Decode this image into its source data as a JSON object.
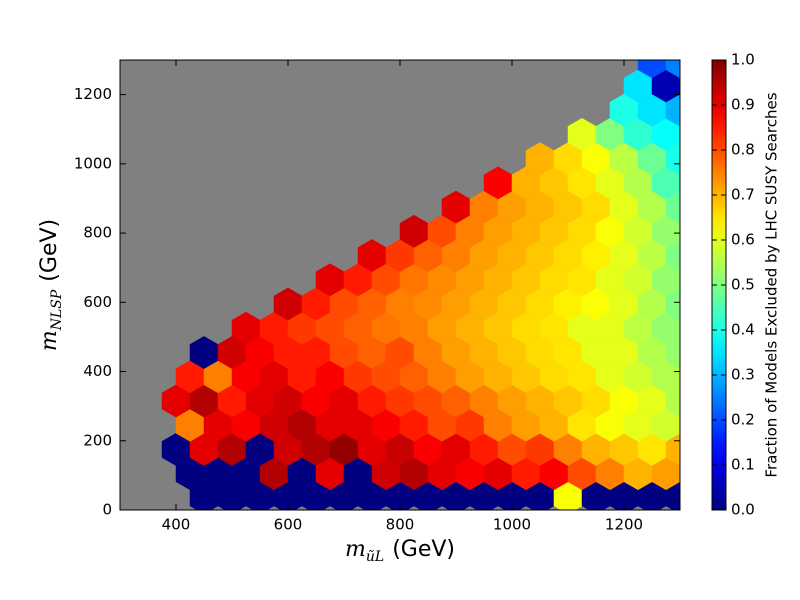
{
  "chart_data": {
    "type": "hexbin",
    "xlabel": {
      "symbol": "m",
      "subscript": "ũL",
      "unit": "(GeV)"
    },
    "ylabel": {
      "symbol": "m",
      "subscript": "NLSP",
      "unit": "(GeV)"
    },
    "colorbar_label": "Fraction of Models Excluded by LHC SUSY Searches",
    "colormap": "jet",
    "background": "#808080",
    "xlim": [
      300,
      1300
    ],
    "ylim": [
      0,
      1300
    ],
    "xticks": [
      400,
      600,
      800,
      1000,
      1200
    ],
    "yticks": [
      0,
      200,
      400,
      600,
      800,
      1000,
      1200
    ],
    "clim": [
      0,
      1
    ],
    "cticks": [
      {
        "value": 0,
        "label": "0.0"
      },
      {
        "value": 0.1,
        "label": "0.1"
      },
      {
        "value": 0.2,
        "label": "0.2"
      },
      {
        "value": 0.3,
        "label": "0.3"
      },
      {
        "value": 0.4,
        "label": "0.4"
      },
      {
        "value": 0.5,
        "label": "0.5"
      },
      {
        "value": 0.6,
        "label": "0.6"
      },
      {
        "value": 0.7,
        "label": "0.7"
      },
      {
        "value": 0.8,
        "label": "0.8"
      },
      {
        "value": 0.9,
        "label": "0.9"
      },
      {
        "value": 1,
        "label": "1.0"
      }
    ],
    "rows": [
      {
        "y": 35,
        "x": [
          450,
          500,
          550,
          600,
          650,
          700,
          750,
          800,
          850,
          900,
          950,
          1000,
          1050,
          1100,
          1150,
          1200,
          1250,
          1300
        ],
        "values": [
          0,
          0,
          0,
          0,
          0,
          0,
          0,
          0,
          0,
          0,
          0,
          0,
          0,
          0.62,
          0,
          0,
          0,
          0
        ]
      },
      {
        "y": 105,
        "x": [
          425,
          475,
          525,
          575,
          625,
          675,
          725,
          775,
          825,
          875,
          925,
          975,
          1025,
          1075,
          1125,
          1175,
          1225,
          1275
        ],
        "values": [
          0,
          0,
          0,
          0.95,
          0,
          0.9,
          0,
          0.92,
          0.95,
          0.9,
          0.88,
          0.9,
          0.85,
          0.88,
          0.8,
          0.75,
          0.7,
          0.72
        ]
      },
      {
        "y": 175,
        "x": [
          400,
          450,
          500,
          550,
          600,
          650,
          700,
          750,
          800,
          850,
          900,
          950,
          1000,
          1050,
          1100,
          1150,
          1200,
          1250,
          1300
        ],
        "values": [
          0,
          0.9,
          0.95,
          0,
          0.92,
          0.95,
          0.98,
          0.9,
          0.93,
          0.88,
          0.9,
          0.85,
          0.8,
          0.82,
          0.75,
          0.7,
          0.68,
          0.65,
          0.7
        ]
      },
      {
        "y": 245,
        "x": [
          425,
          475,
          525,
          575,
          625,
          675,
          725,
          775,
          825,
          875,
          925,
          975,
          1025,
          1075,
          1125,
          1175,
          1225,
          1275
        ],
        "values": [
          0.75,
          0.9,
          0.88,
          0.92,
          0.95,
          0.9,
          0.9,
          0.88,
          0.85,
          0.8,
          0.82,
          0.75,
          0.72,
          0.7,
          0.65,
          0.62,
          0.6,
          0.58
        ]
      },
      {
        "y": 315,
        "x": [
          400,
          450,
          500,
          550,
          600,
          650,
          700,
          750,
          800,
          850,
          900,
          950,
          1000,
          1050,
          1100,
          1150,
          1200,
          1250,
          1300
        ],
        "values": [
          0.9,
          0.95,
          0.85,
          0.9,
          0.92,
          0.88,
          0.9,
          0.85,
          0.82,
          0.8,
          0.78,
          0.75,
          0.72,
          0.7,
          0.68,
          0.66,
          0.62,
          0.6,
          0.55
        ]
      },
      {
        "y": 385,
        "x": [
          425,
          475,
          525,
          575,
          625,
          675,
          725,
          775,
          825,
          875,
          925,
          975,
          1025,
          1075,
          1125,
          1175,
          1225,
          1275
        ],
        "values": [
          0.85,
          0.75,
          0.88,
          0.9,
          0.85,
          0.88,
          0.82,
          0.8,
          0.78,
          0.75,
          0.72,
          0.7,
          0.68,
          0.66,
          0.65,
          0.6,
          0.58,
          0.55
        ]
      },
      {
        "y": 455,
        "x": [
          450,
          500,
          550,
          600,
          650,
          700,
          750,
          800,
          850,
          900,
          950,
          1000,
          1050,
          1100,
          1150,
          1200,
          1250,
          1300
        ],
        "values": [
          0,
          0.92,
          0.88,
          0.85,
          0.85,
          0.8,
          0.78,
          0.8,
          0.75,
          0.72,
          0.7,
          0.68,
          0.66,
          0.65,
          0.6,
          0.6,
          0.55,
          0.52
        ]
      },
      {
        "y": 525,
        "x": [
          525,
          575,
          625,
          675,
          725,
          775,
          825,
          875,
          925,
          975,
          1025,
          1075,
          1125,
          1175,
          1225,
          1275
        ],
        "values": [
          0.9,
          0.85,
          0.82,
          0.8,
          0.78,
          0.76,
          0.75,
          0.72,
          0.7,
          0.68,
          0.66,
          0.65,
          0.6,
          0.6,
          0.56,
          0.52
        ]
      },
      {
        "y": 595,
        "x": [
          600,
          650,
          700,
          750,
          800,
          850,
          900,
          950,
          1000,
          1050,
          1100,
          1150,
          1200,
          1250,
          1300
        ],
        "values": [
          0.92,
          0.85,
          0.8,
          0.78,
          0.75,
          0.74,
          0.72,
          0.7,
          0.68,
          0.66,
          0.64,
          0.62,
          0.6,
          0.55,
          0.5
        ]
      },
      {
        "y": 665,
        "x": [
          675,
          725,
          775,
          825,
          875,
          925,
          975,
          1025,
          1075,
          1125,
          1175,
          1225,
          1275
        ],
        "values": [
          0.9,
          0.85,
          0.8,
          0.76,
          0.74,
          0.72,
          0.7,
          0.68,
          0.66,
          0.65,
          0.6,
          0.58,
          0.52
        ]
      },
      {
        "y": 735,
        "x": [
          750,
          800,
          850,
          900,
          950,
          1000,
          1050,
          1100,
          1150,
          1200,
          1250,
          1300
        ],
        "values": [
          0.9,
          0.82,
          0.78,
          0.75,
          0.72,
          0.7,
          0.68,
          0.66,
          0.64,
          0.6,
          0.56,
          0.5
        ]
      },
      {
        "y": 805,
        "x": [
          825,
          875,
          925,
          975,
          1025,
          1075,
          1125,
          1175,
          1225,
          1275
        ],
        "values": [
          0.92,
          0.8,
          0.75,
          0.72,
          0.7,
          0.68,
          0.66,
          0.62,
          0.58,
          0.52
        ]
      },
      {
        "y": 875,
        "x": [
          900,
          950,
          1000,
          1050,
          1100,
          1150,
          1200,
          1250,
          1300
        ],
        "values": [
          0.9,
          0.75,
          0.72,
          0.7,
          0.68,
          0.66,
          0.6,
          0.55,
          0.48
        ]
      },
      {
        "y": 945,
        "x": [
          975,
          1025,
          1075,
          1125,
          1175,
          1225,
          1275
        ],
        "values": [
          0.88,
          0.7,
          0.68,
          0.65,
          0.6,
          0.55,
          0.45
        ]
      },
      {
        "y": 1015,
        "x": [
          1050,
          1100,
          1150,
          1200,
          1250,
          1300
        ],
        "values": [
          0.7,
          0.66,
          0.62,
          0.56,
          0.48,
          0.4
        ]
      },
      {
        "y": 1085,
        "x": [
          1125,
          1175,
          1225,
          1275
        ],
        "values": [
          0.6,
          0.5,
          0.42,
          0.38
        ]
      },
      {
        "y": 1155,
        "x": [
          1200,
          1250,
          1300
        ],
        "values": [
          0.4,
          0.35,
          0.3
        ]
      },
      {
        "y": 1225,
        "x": [
          1225,
          1275
        ],
        "values": [
          0.35,
          0.05
        ]
      },
      {
        "y": 1295,
        "x": [
          1250,
          1300
        ],
        "values": [
          0.2,
          0.25
        ]
      }
    ]
  }
}
